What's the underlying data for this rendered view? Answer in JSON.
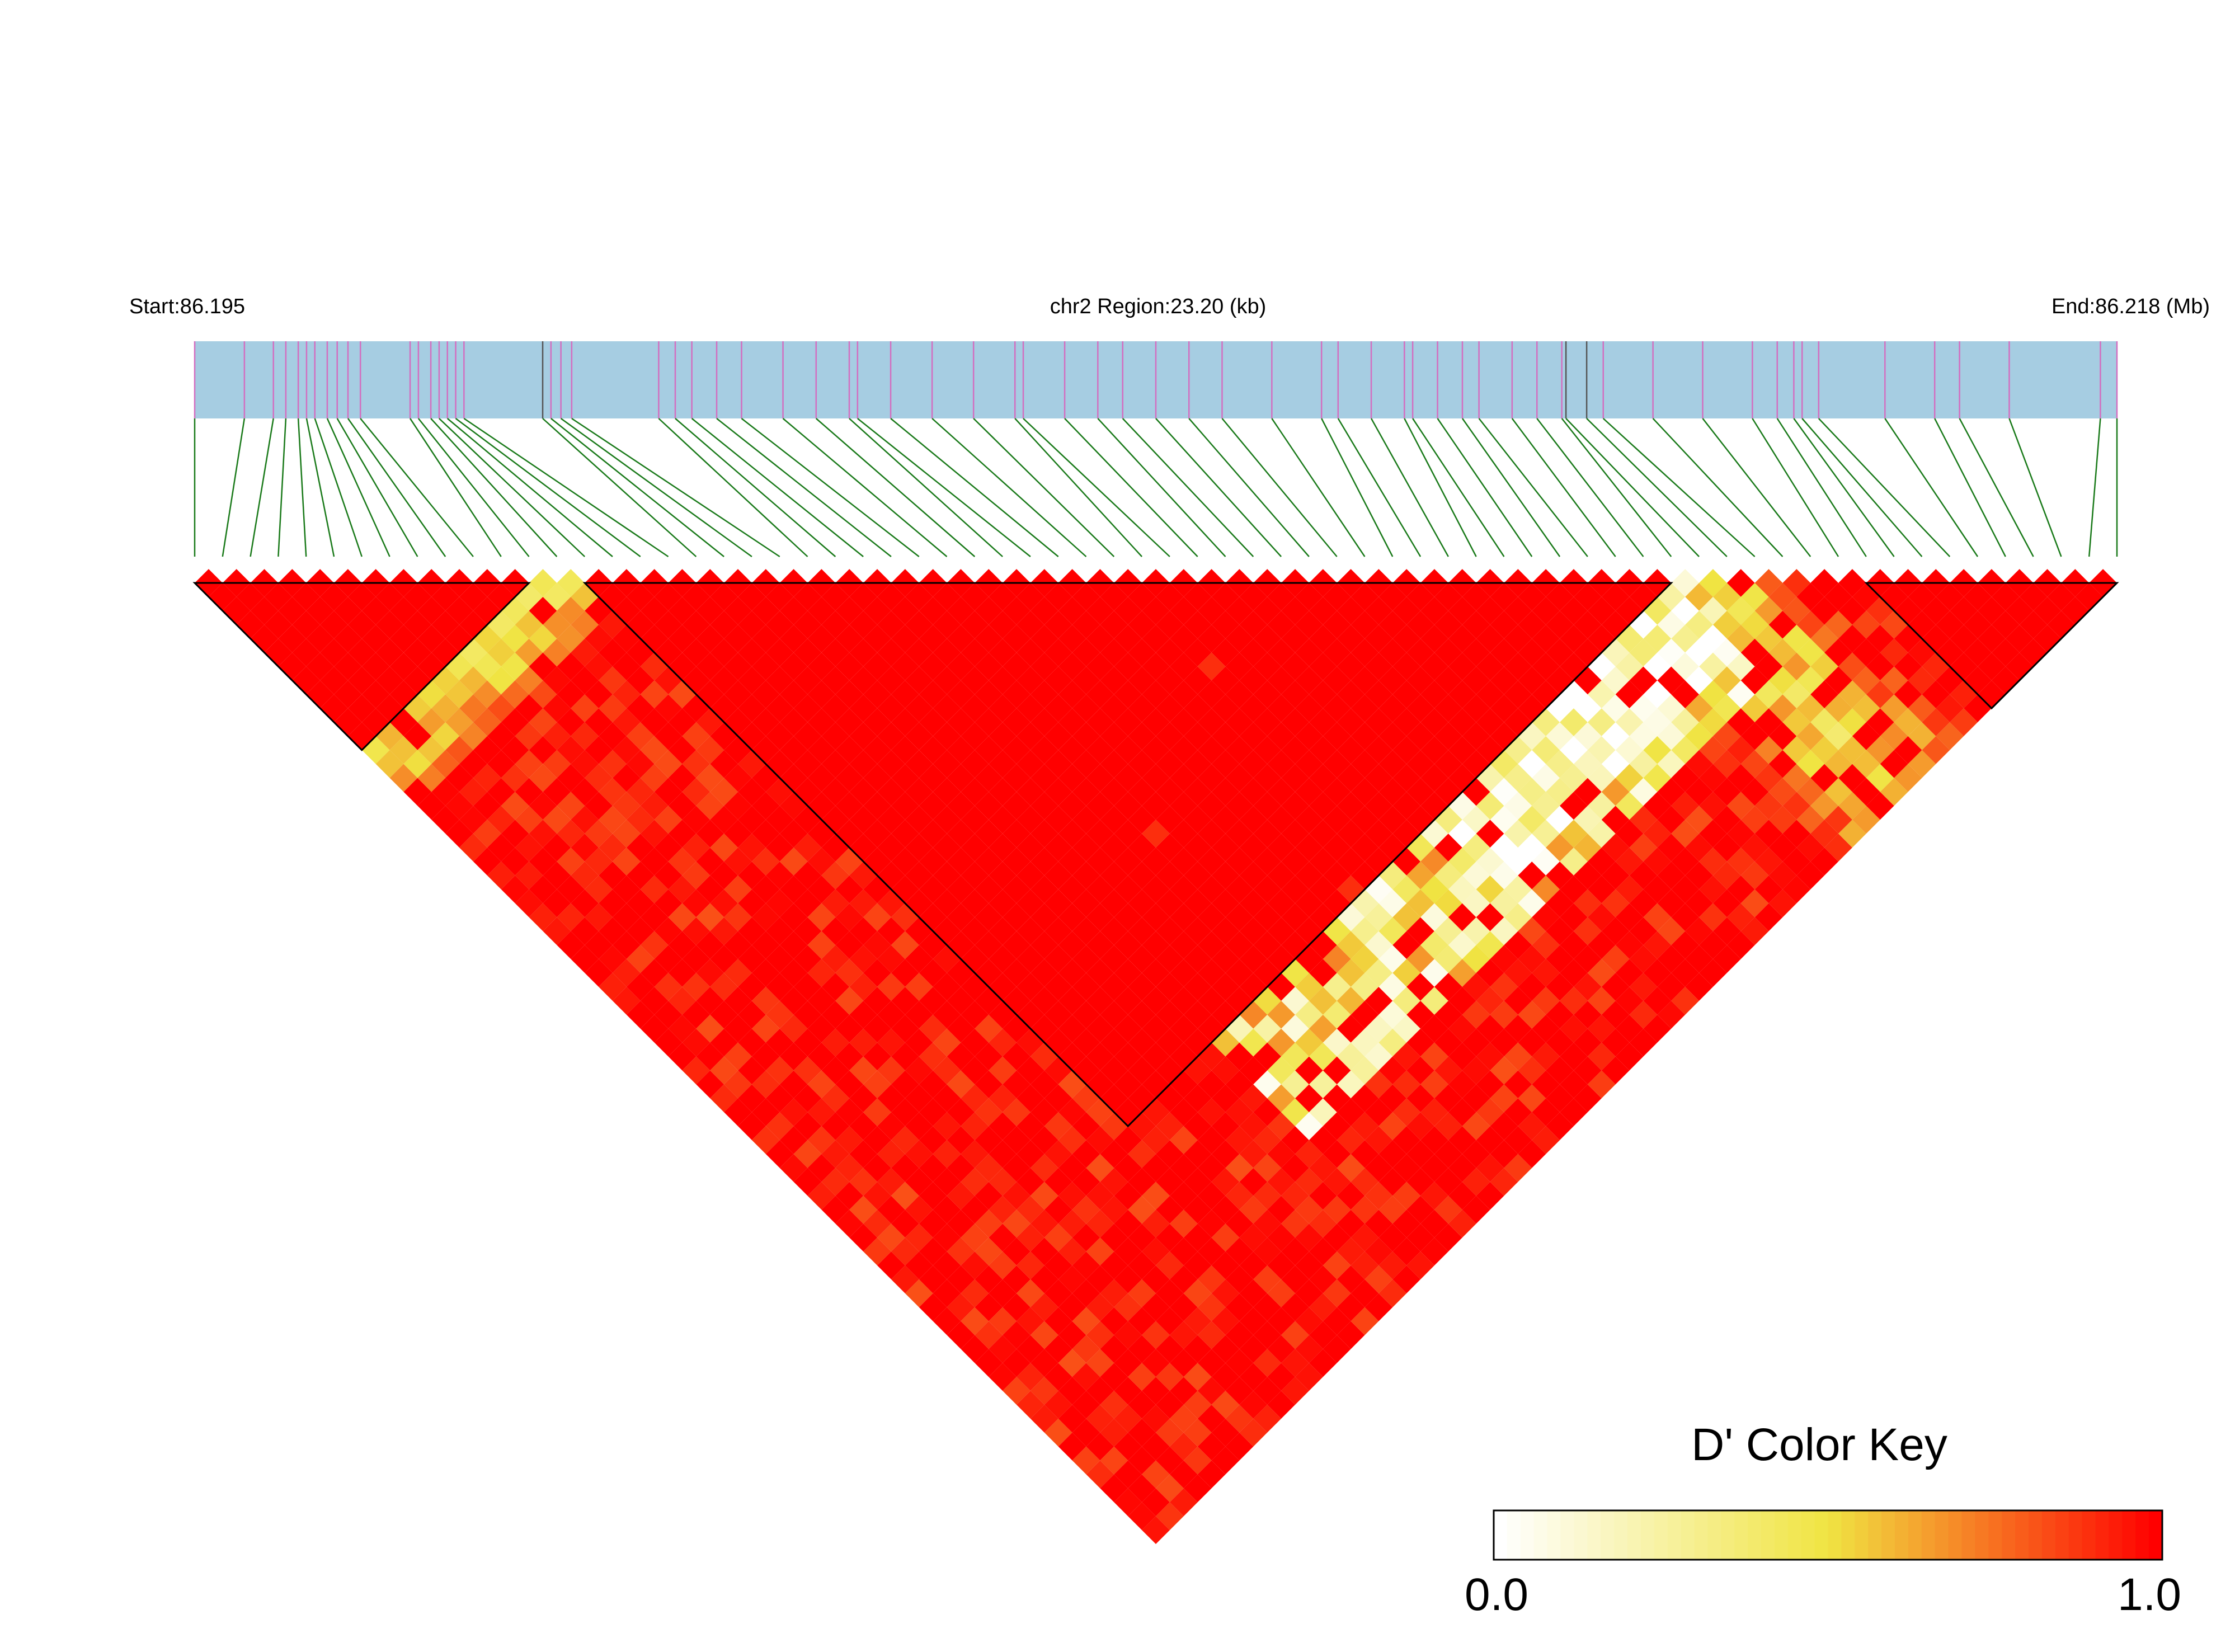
{
  "header": {
    "start_label": "Start:86.195",
    "region_label": "chr2 Region:23.20 (kb)",
    "end_label": "End:86.218 (Mb)"
  },
  "colors": {
    "track_fill": "#a6cde2",
    "snp_line": "#d36ec0",
    "snp_line_dark": "#555555",
    "connector": "#1a7a1a",
    "ld_high": "#ff0000",
    "ld_mid": "#f0e442",
    "ld_low": "#ffffff",
    "block_outline": "#000000"
  },
  "snp_count": 70,
  "snp_positions_kb": [
    0.0,
    0.6,
    0.95,
    1.1,
    1.25,
    1.35,
    1.45,
    1.6,
    1.72,
    1.85,
    2.0,
    2.6,
    2.7,
    2.85,
    2.95,
    3.05,
    3.15,
    3.25,
    4.2,
    4.3,
    4.42,
    4.55,
    5.6,
    5.8,
    6.0,
    6.3,
    6.6,
    7.1,
    7.5,
    7.9,
    8.0,
    8.4,
    8.9,
    9.4,
    9.9,
    10.0,
    10.5,
    10.9,
    11.2,
    11.6,
    12.0,
    12.4,
    13.0,
    13.6,
    13.8,
    14.2,
    14.6,
    14.7,
    15.0,
    15.3,
    15.5,
    15.9,
    16.2,
    16.5,
    16.55,
    16.8,
    17.0,
    17.6,
    18.2,
    18.8,
    19.1,
    19.3,
    19.4,
    19.6,
    20.4,
    21.0,
    21.3,
    21.9,
    23.0,
    23.2
  ],
  "ld_blocks": [
    {
      "start": 0,
      "end": 12
    },
    {
      "start": 14,
      "end": 53
    },
    {
      "start": 60,
      "end": 69
    }
  ],
  "color_key": {
    "title": "D' Color Key",
    "min_label": "0.0",
    "max_label": "1.0",
    "min": 0.0,
    "max": 1.0
  }
}
